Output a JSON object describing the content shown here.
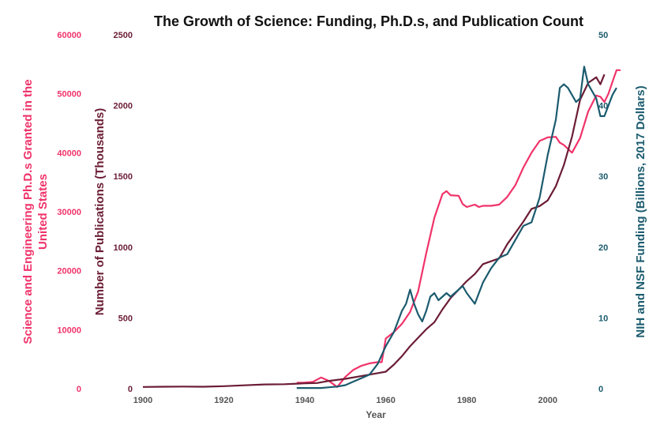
{
  "chart_data": {
    "type": "line",
    "title": "The Growth of Science: Funding, Ph.D.s, and Publication Count",
    "xlabel": "Year",
    "xlim": [
      1900,
      2018
    ],
    "x_ticks": [
      "1900",
      "1920",
      "1940",
      "1960",
      "1980",
      "2000"
    ],
    "grid": false,
    "legend": "none",
    "axes": {
      "left_outer": {
        "label_lines": [
          "Science and Engineering Ph.D.s Granted in the",
          "United States"
        ],
        "ylim": [
          0,
          60000
        ],
        "ticks": [
          "0",
          "10000",
          "20000",
          "30000",
          "40000",
          "50000",
          "60000"
        ],
        "color": "#f0336a"
      },
      "left_inner": {
        "label": "Number of Publications (Thousands)",
        "ylim": [
          0,
          2500
        ],
        "ticks": [
          "0",
          "500",
          "1000",
          "1500",
          "2000",
          "2500"
        ],
        "color": "#6b1d35"
      },
      "right": {
        "label": "NIH and NSF Funding (Billions, 2017 Dollars)",
        "ylim": [
          0,
          50
        ],
        "ticks": [
          "0",
          "10",
          "20",
          "30",
          "40",
          "50"
        ],
        "color": "#1b5b6e"
      }
    },
    "series": [
      {
        "axis": "left_outer",
        "color": "#f0336a",
        "points": [
          [
            1938,
            1000
          ],
          [
            1940,
            1050
          ],
          [
            1942,
            1150
          ],
          [
            1944,
            1900
          ],
          [
            1946,
            1300
          ],
          [
            1948,
            300
          ],
          [
            1950,
            2000
          ],
          [
            1952,
            3200
          ],
          [
            1954,
            3900
          ],
          [
            1956,
            4300
          ],
          [
            1958,
            4500
          ],
          [
            1959,
            4500
          ],
          [
            1960,
            8500
          ],
          [
            1962,
            9600
          ],
          [
            1964,
            11000
          ],
          [
            1966,
            13000
          ],
          [
            1968,
            16500
          ],
          [
            1970,
            23000
          ],
          [
            1972,
            29000
          ],
          [
            1974,
            33000
          ],
          [
            1975,
            33500
          ],
          [
            1976,
            32800
          ],
          [
            1978,
            32700
          ],
          [
            1979,
            31300
          ],
          [
            1980,
            30800
          ],
          [
            1982,
            31200
          ],
          [
            1983,
            30800
          ],
          [
            1984,
            31000
          ],
          [
            1986,
            31000
          ],
          [
            1988,
            31200
          ],
          [
            1990,
            32500
          ],
          [
            1992,
            34500
          ],
          [
            1994,
            37500
          ],
          [
            1996,
            40000
          ],
          [
            1998,
            42000
          ],
          [
            2000,
            42600
          ],
          [
            2002,
            42700
          ],
          [
            2003,
            41700
          ],
          [
            2004,
            41300
          ],
          [
            2006,
            40000
          ],
          [
            2008,
            42500
          ],
          [
            2010,
            47000
          ],
          [
            2012,
            49700
          ],
          [
            2013,
            49500
          ],
          [
            2014,
            48600
          ],
          [
            2015,
            50000
          ],
          [
            2016,
            52000
          ],
          [
            2017,
            54000
          ],
          [
            2018,
            54000
          ]
        ]
      },
      {
        "axis": "left_inner",
        "color": "#6b1d35",
        "points": [
          [
            1900,
            12
          ],
          [
            1905,
            14
          ],
          [
            1910,
            15
          ],
          [
            1915,
            14
          ],
          [
            1920,
            18
          ],
          [
            1925,
            24
          ],
          [
            1930,
            30
          ],
          [
            1935,
            32
          ],
          [
            1940,
            38
          ],
          [
            1943,
            40
          ],
          [
            1946,
            55
          ],
          [
            1950,
            70
          ],
          [
            1954,
            90
          ],
          [
            1958,
            110
          ],
          [
            1960,
            120
          ],
          [
            1962,
            170
          ],
          [
            1964,
            230
          ],
          [
            1966,
            300
          ],
          [
            1968,
            360
          ],
          [
            1970,
            420
          ],
          [
            1972,
            470
          ],
          [
            1974,
            560
          ],
          [
            1976,
            640
          ],
          [
            1978,
            700
          ],
          [
            1980,
            760
          ],
          [
            1982,
            810
          ],
          [
            1984,
            880
          ],
          [
            1986,
            900
          ],
          [
            1988,
            920
          ],
          [
            1990,
            1020
          ],
          [
            1992,
            1100
          ],
          [
            1994,
            1180
          ],
          [
            1996,
            1270
          ],
          [
            1998,
            1290
          ],
          [
            2000,
            1330
          ],
          [
            2002,
            1430
          ],
          [
            2004,
            1580
          ],
          [
            2006,
            1780
          ],
          [
            2008,
            2040
          ],
          [
            2010,
            2160
          ],
          [
            2012,
            2200
          ],
          [
            2013,
            2150
          ],
          [
            2014,
            2220
          ]
        ]
      },
      {
        "axis": "right",
        "color": "#1b5b6e",
        "points": [
          [
            1938,
            0.1
          ],
          [
            1944,
            0.1
          ],
          [
            1946,
            0.2
          ],
          [
            1948,
            0.3
          ],
          [
            1950,
            0.5
          ],
          [
            1952,
            1.0
          ],
          [
            1954,
            1.5
          ],
          [
            1956,
            2.0
          ],
          [
            1958,
            3.5
          ],
          [
            1960,
            6.0
          ],
          [
            1962,
            8.0
          ],
          [
            1963,
            9.5
          ],
          [
            1964,
            11.0
          ],
          [
            1965,
            12.0
          ],
          [
            1966,
            14.0
          ],
          [
            1967,
            12.0
          ],
          [
            1968,
            10.5
          ],
          [
            1969,
            9.5
          ],
          [
            1970,
            11.0
          ],
          [
            1971,
            13.0
          ],
          [
            1972,
            13.5
          ],
          [
            1973,
            12.5
          ],
          [
            1974,
            13.0
          ],
          [
            1975,
            13.5
          ],
          [
            1976,
            13.0
          ],
          [
            1978,
            14.0
          ],
          [
            1979,
            14.5
          ],
          [
            1980,
            13.5
          ],
          [
            1982,
            12.0
          ],
          [
            1984,
            15.0
          ],
          [
            1986,
            17.0
          ],
          [
            1988,
            18.5
          ],
          [
            1990,
            19.0
          ],
          [
            1992,
            21.0
          ],
          [
            1994,
            23.0
          ],
          [
            1996,
            23.5
          ],
          [
            1998,
            27.0
          ],
          [
            2000,
            33.0
          ],
          [
            2002,
            38.0
          ],
          [
            2003,
            42.5
          ],
          [
            2004,
            43.0
          ],
          [
            2005,
            42.5
          ],
          [
            2006,
            41.5
          ],
          [
            2007,
            40.5
          ],
          [
            2008,
            41.0
          ],
          [
            2009,
            45.5
          ],
          [
            2010,
            43.0
          ],
          [
            2011,
            42.0
          ],
          [
            2012,
            41.0
          ],
          [
            2013,
            38.5
          ],
          [
            2014,
            38.5
          ],
          [
            2015,
            40.0
          ],
          [
            2016,
            41.5
          ],
          [
            2017,
            42.5
          ]
        ]
      }
    ]
  }
}
